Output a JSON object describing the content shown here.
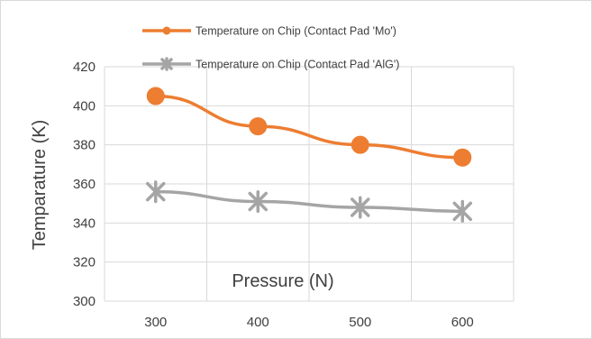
{
  "chart_data": {
    "type": "line",
    "title": "",
    "xlabel": "Pressure (N)",
    "ylabel": "Temparature (K)",
    "categories": [
      "300",
      "400",
      "500",
      "600"
    ],
    "ylim": [
      300,
      420
    ],
    "yticks": [
      300,
      320,
      340,
      360,
      380,
      400,
      420
    ],
    "grid": true,
    "legend_position": "top",
    "series": [
      {
        "name": "Temperature on Chip (Contact Pad 'Mo')",
        "values": [
          405,
          389.5,
          380,
          373.5
        ],
        "color": "#ED7D31",
        "marker": "circle"
      },
      {
        "name": "Temperature on Chip (Contact Pad 'AlG')",
        "values": [
          356,
          351,
          348,
          346
        ],
        "color": "#A5A5A5",
        "marker": "asterisk"
      }
    ]
  }
}
